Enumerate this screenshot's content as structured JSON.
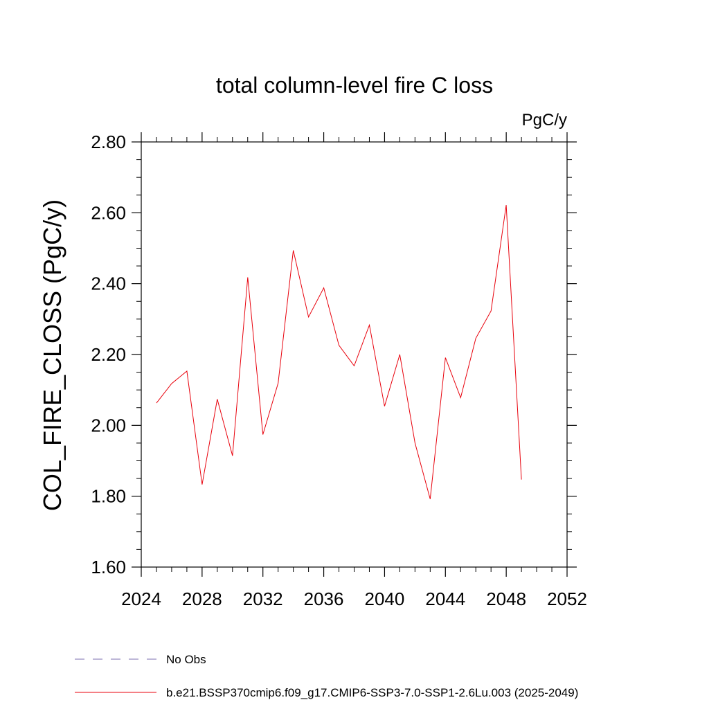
{
  "chart_data": {
    "type": "line",
    "title": "total column-level fire C loss",
    "units": "PgC/y",
    "ylabel": "COL_FIRE_CLOSS  (PgC/y)",
    "xlabel": "",
    "xlim": [
      2024,
      2052
    ],
    "ylim": [
      1.6,
      2.8
    ],
    "x_ticks": [
      2024,
      2028,
      2032,
      2036,
      2040,
      2044,
      2048,
      2052
    ],
    "x_tick_labels": [
      "2024",
      "2028",
      "2032",
      "2036",
      "2040",
      "2044",
      "2048",
      "2052"
    ],
    "y_ticks": [
      1.6,
      1.8,
      2.0,
      2.2,
      2.4,
      2.6,
      2.8
    ],
    "y_tick_labels": [
      "1.60",
      "1.80",
      "2.00",
      "2.20",
      "2.40",
      "2.60",
      "2.80"
    ],
    "grid": false,
    "legend_position": "bottom",
    "series": [
      {
        "name": "b.e21.BSSP370cmip6.f09_g17.CMIP6-SSP3-7.0-SSP1-2.6Lu.003 (2025-2049)",
        "color": "#e8000b",
        "style": "solid",
        "x": [
          2025,
          2026,
          2027,
          2028,
          2029,
          2030,
          2031,
          2032,
          2033,
          2034,
          2035,
          2036,
          2037,
          2038,
          2039,
          2040,
          2041,
          2042,
          2043,
          2044,
          2045,
          2046,
          2047,
          2048,
          2049
        ],
        "y": [
          2.063,
          2.118,
          2.153,
          1.833,
          2.074,
          1.914,
          2.418,
          1.974,
          2.119,
          2.494,
          2.306,
          2.388,
          2.226,
          2.168,
          2.283,
          2.054,
          2.2,
          1.95,
          1.792,
          2.191,
          2.078,
          2.246,
          2.323,
          2.622,
          1.847
        ]
      }
    ],
    "legend_entries": [
      {
        "label": "No Obs",
        "color": "#7b6fb0",
        "style": "dashed"
      },
      {
        "label": "b.e21.BSSP370cmip6.f09_g17.CMIP6-SSP3-7.0-SSP1-2.6Lu.003 (2025-2049)",
        "color": "#e8000b",
        "style": "solid"
      }
    ]
  }
}
